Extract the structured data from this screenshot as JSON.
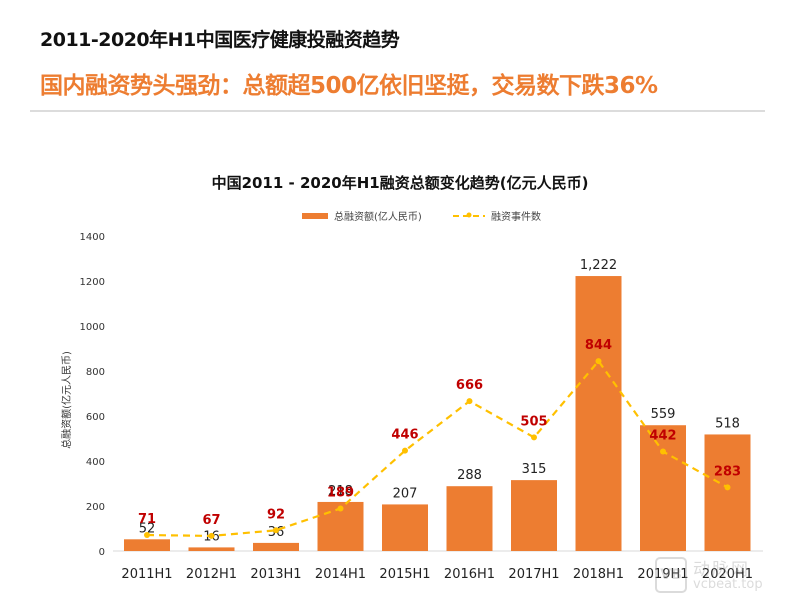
{
  "header": {
    "title": "2011-2020年H1中国医疗健康投融资趋势",
    "subtitle": "国内融资势头强劲：总额超500亿依旧坚挺，交易数下跌36%"
  },
  "colors": {
    "bar": "#ED7D31",
    "line": "#FFC000",
    "line_label": "#C00000",
    "bar_label": "#222222",
    "accent": "#ED7D31"
  },
  "watermark": {
    "logo_text": "VB",
    "name": "动脉网",
    "url": "vcbeat.top"
  },
  "chart_data": {
    "type": "bar",
    "title": "中国2011 - 2020年H1融资总额变化趋势(亿元人民币)",
    "xlabel": "",
    "ylabel": "总融资额(亿元人民币)",
    "ylim": [
      0,
      1400
    ],
    "yticks": [
      0,
      200,
      400,
      600,
      800,
      1000,
      1200,
      1400
    ],
    "grid": false,
    "legend_position": "top-center",
    "categories": [
      "2011H1",
      "2012H1",
      "2013H1",
      "2014H1",
      "2015H1",
      "2016H1",
      "2017H1",
      "2018H1",
      "2019H1",
      "2020H1"
    ],
    "series": [
      {
        "name": "总融资额(亿人民币)",
        "type": "bar",
        "values": [
          52,
          16,
          36,
          218,
          207,
          288,
          315,
          1222,
          559,
          518
        ],
        "labels": [
          "52",
          "16",
          "36",
          "218",
          "207",
          "288",
          "315",
          "1,222",
          "559",
          "518"
        ]
      },
      {
        "name": "融资事件数",
        "type": "line",
        "style": "dashed",
        "values": [
          71,
          67,
          92,
          189,
          446,
          666,
          505,
          844,
          442,
          283
        ],
        "labels": [
          "71",
          "67",
          "92",
          "189",
          "446",
          "666",
          "505",
          "844",
          "442",
          "283"
        ]
      }
    ]
  }
}
